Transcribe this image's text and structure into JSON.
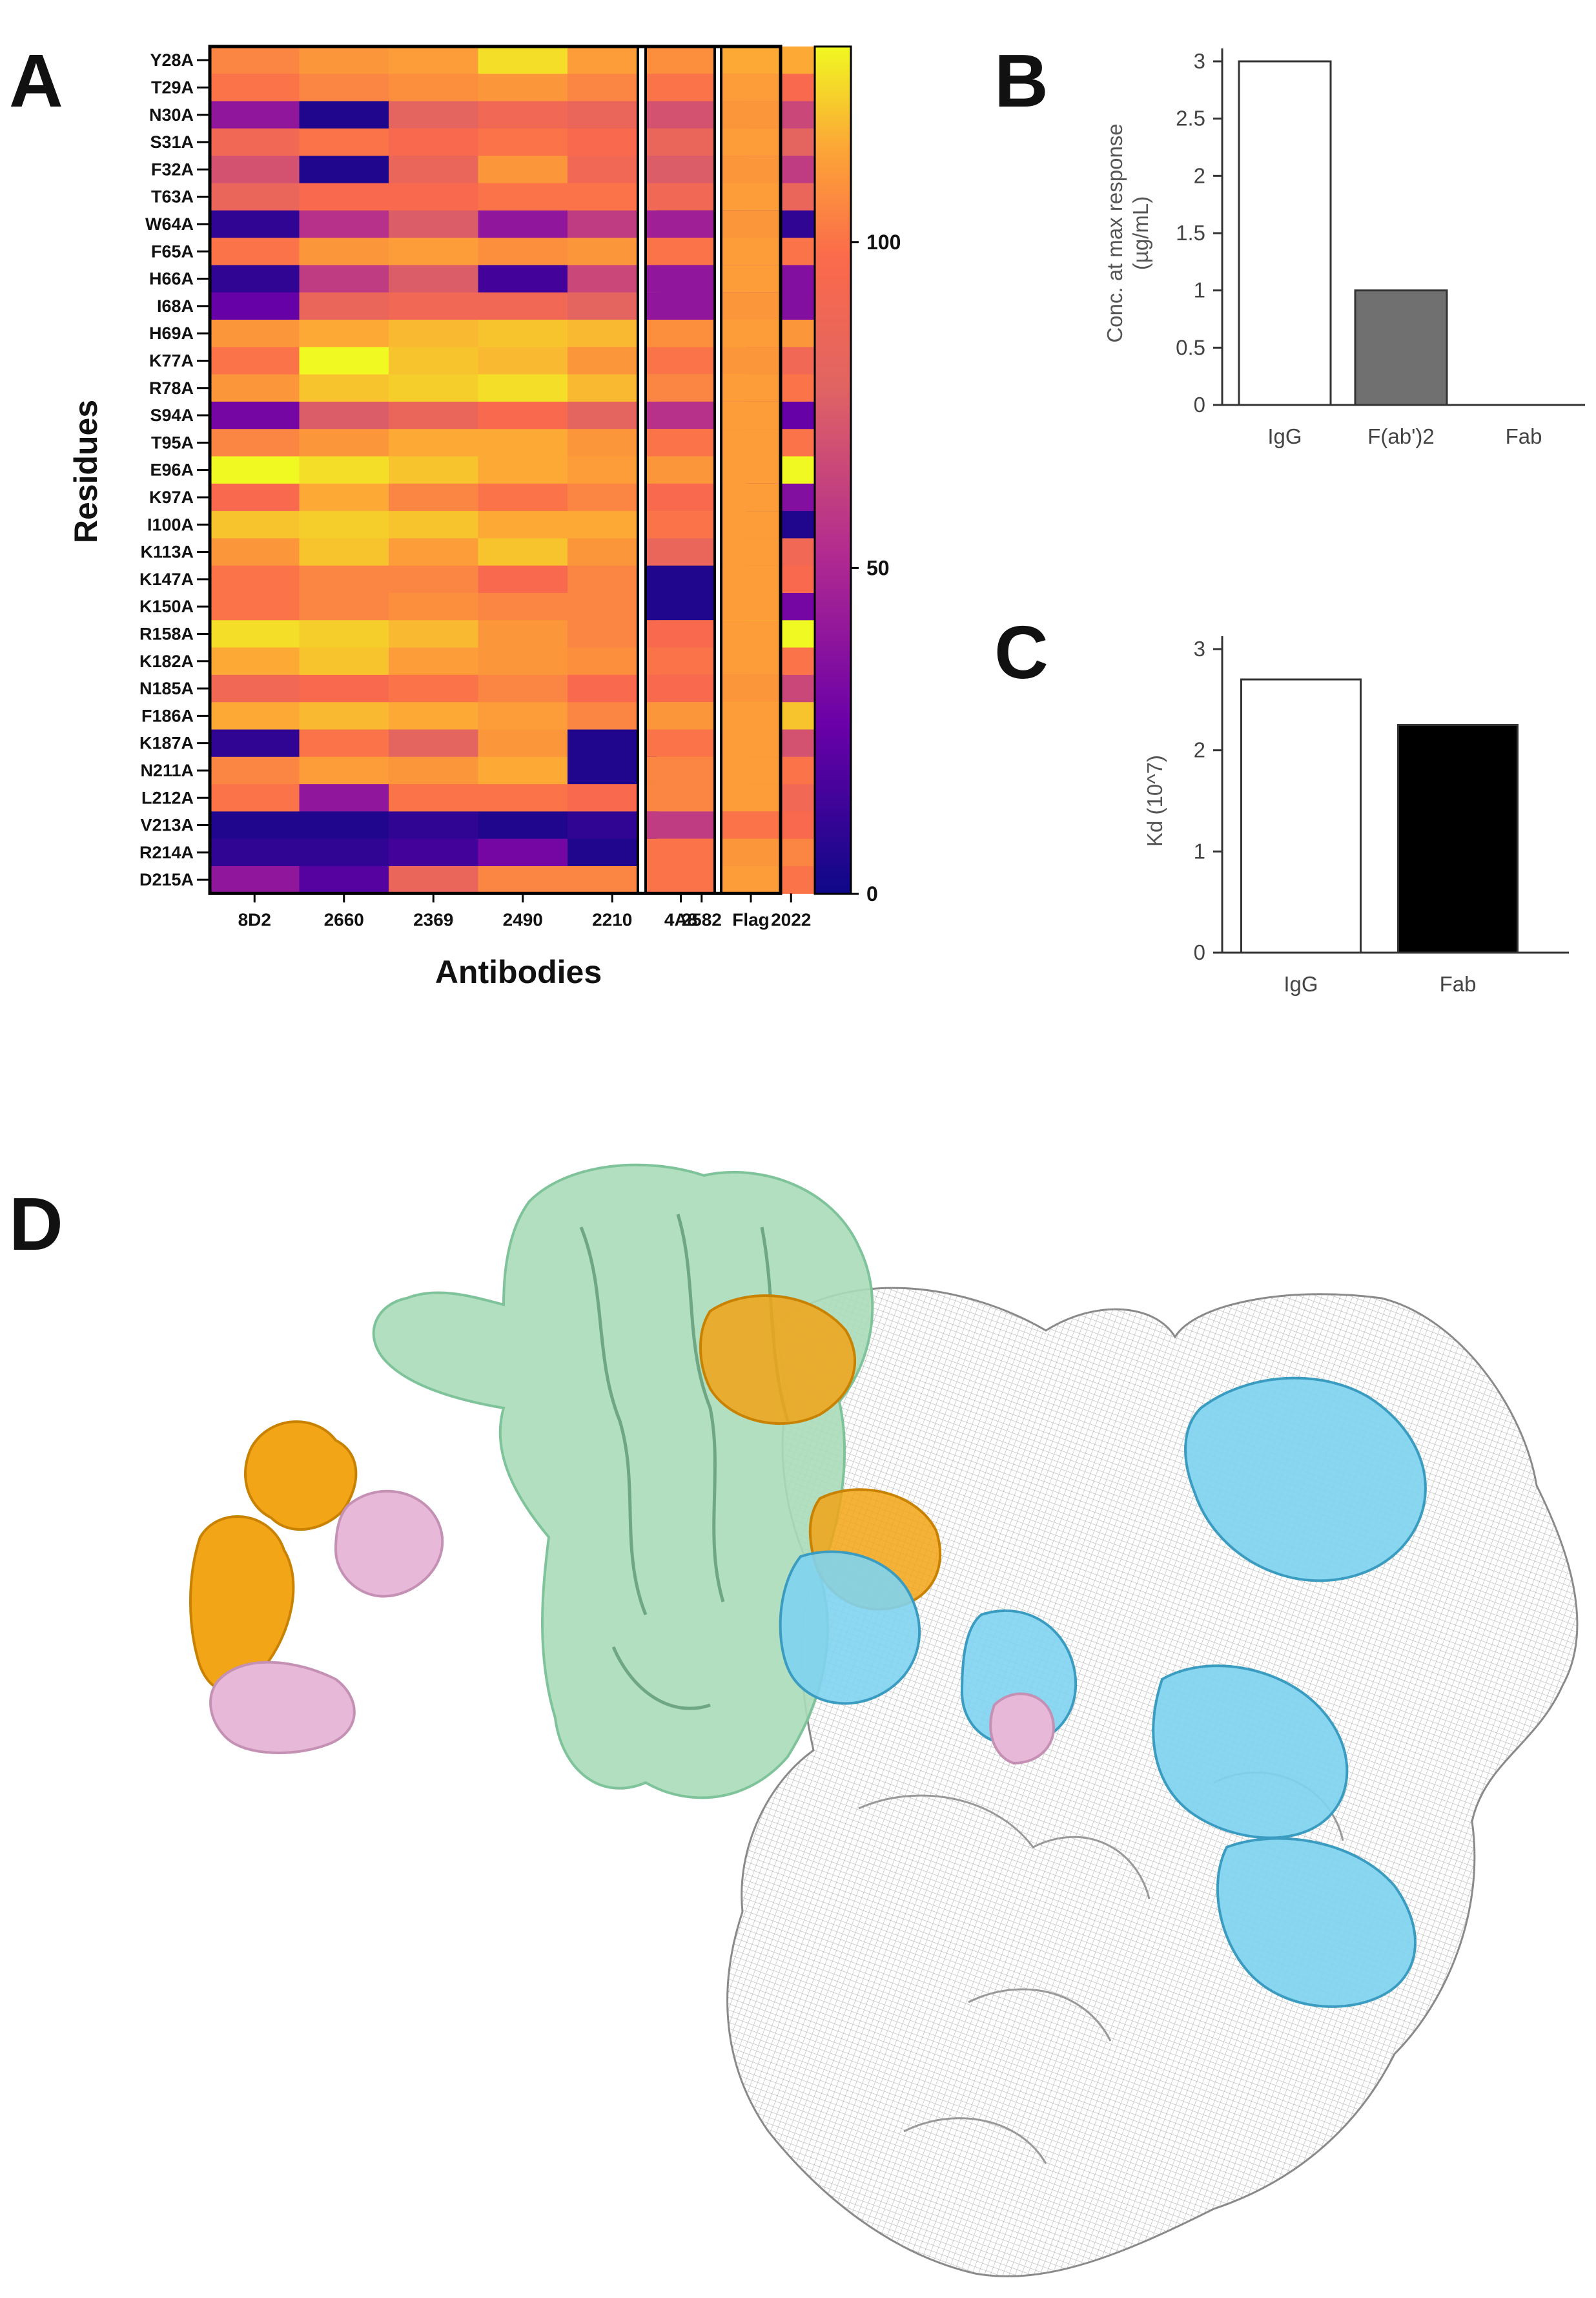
{
  "panels": {
    "a": "A",
    "b": "B",
    "c": "C",
    "d": "D"
  },
  "colors": {
    "cmap": [
      "#0d0887",
      "#7e03a8",
      "#cc4778",
      "#f0587a",
      "#fb6a4b",
      "#fd9a2c",
      "#f0f921"
    ]
  },
  "chart_data": [
    {
      "type": "heatmap",
      "ylabel": "Residues",
      "xlabel": "Antibodies",
      "rows": [
        "Y28A",
        "T29A",
        "N30A",
        "S31A",
        "F32A",
        "T63A",
        "W64A",
        "F65A",
        "H66A",
        "I68A",
        "H69A",
        "K77A",
        "R78A",
        "S94A",
        "T95A",
        "E96A",
        "K97A",
        "I100A",
        "K113A",
        "K147A",
        "K150A",
        "R158A",
        "K182A",
        "N185A",
        "F186A",
        "K187A",
        "N211A",
        "L212A",
        "V213A",
        "R214A",
        "D215A"
      ],
      "columns": [
        "8D2",
        "2660",
        "2369",
        "2490",
        "2210",
        "2582",
        "2022",
        "4A8",
        "Flag"
      ],
      "colorbar": {
        "ticks": [
          0,
          50,
          100
        ],
        "range": [
          0,
          130
        ]
      },
      "values": [
        [
          105,
          110,
          112,
          125,
          112,
          110,
          115,
          108,
          115
        ],
        [
          100,
          105,
          108,
          110,
          105,
          100,
          95,
          100,
          112
        ],
        [
          40,
          5,
          80,
          90,
          85,
          75,
          65,
          70,
          110
        ],
        [
          90,
          100,
          95,
          100,
          95,
          90,
          80,
          85,
          112
        ],
        [
          70,
          5,
          85,
          110,
          90,
          80,
          60,
          75,
          110
        ],
        [
          85,
          95,
          95,
          100,
          100,
          90,
          85,
          90,
          112
        ],
        [
          10,
          55,
          75,
          40,
          60,
          5,
          10,
          45,
          110
        ],
        [
          100,
          110,
          112,
          108,
          110,
          112,
          100,
          100,
          112
        ],
        [
          10,
          60,
          75,
          15,
          65,
          40,
          35,
          40,
          112
        ],
        [
          25,
          85,
          90,
          90,
          80,
          45,
          35,
          40,
          110
        ],
        [
          110,
          115,
          118,
          120,
          118,
          112,
          110,
          108,
          112
        ],
        [
          100,
          130,
          120,
          118,
          110,
          118,
          90,
          100,
          110
        ],
        [
          110,
          120,
          122,
          125,
          118,
          122,
          100,
          105,
          112
        ],
        [
          30,
          75,
          85,
          95,
          80,
          50,
          25,
          55,
          112
        ],
        [
          105,
          110,
          115,
          115,
          110,
          105,
          100,
          100,
          112
        ],
        [
          130,
          125,
          120,
          115,
          112,
          120,
          135,
          110,
          112
        ],
        [
          95,
          115,
          105,
          100,
          105,
          110,
          35,
          95,
          112
        ],
        [
          120,
          122,
          120,
          115,
          115,
          110,
          5,
          100,
          112
        ],
        [
          110,
          120,
          112,
          120,
          110,
          105,
          90,
          85,
          112
        ],
        [
          100,
          105,
          105,
          95,
          105,
          105,
          95,
          5,
          112
        ],
        [
          100,
          105,
          108,
          105,
          105,
          110,
          30,
          5,
          112
        ],
        [
          125,
          122,
          118,
          110,
          105,
          120,
          135,
          95,
          112
        ],
        [
          115,
          120,
          112,
          110,
          108,
          105,
          100,
          100,
          112
        ],
        [
          90,
          95,
          100,
          105,
          95,
          60,
          65,
          95,
          110
        ],
        [
          115,
          118,
          115,
          112,
          105,
          118,
          120,
          110,
          112
        ],
        [
          10,
          100,
          80,
          110,
          5,
          110,
          70,
          100,
          112
        ],
        [
          105,
          112,
          110,
          115,
          5,
          110,
          100,
          105,
          112
        ],
        [
          100,
          40,
          100,
          100,
          95,
          105,
          90,
          105,
          112
        ],
        [
          5,
          5,
          10,
          5,
          10,
          90,
          95,
          60,
          100
        ],
        [
          10,
          10,
          15,
          30,
          5,
          105,
          105,
          100,
          110
        ],
        [
          40,
          20,
          85,
          105,
          105,
          105,
          100,
          100,
          112
        ]
      ]
    },
    {
      "type": "bar",
      "ylabel": "Conc. at max response\n(µg/mL)",
      "categories": [
        "IgG",
        "F(ab')2",
        "Fab"
      ],
      "values": [
        3,
        1,
        0
      ],
      "ylim": [
        0,
        3
      ],
      "yticks": [
        "0",
        "0.5",
        "1",
        "1.5",
        "2",
        "2.5",
        "3"
      ],
      "bar_colors": [
        "#ffffff",
        "#707070",
        "#ffffff"
      ]
    },
    {
      "type": "bar",
      "ylabel": "Kd (10^7)",
      "categories": [
        "IgG",
        "Fab"
      ],
      "values": [
        2.7,
        2.25
      ],
      "ylim": [
        0,
        3
      ],
      "yticks": [
        "0",
        "1",
        "2",
        "3"
      ],
      "bar_colors": [
        "#ffffff",
        "#000000"
      ]
    }
  ],
  "structure": {
    "colors": {
      "spike": "#a8dcb8",
      "heavy_chain": "#f2a516",
      "light_chain": "#e8b8d8",
      "fab_cyan": "#7fd3ef",
      "density_mesh": "#9a9a9a"
    }
  }
}
